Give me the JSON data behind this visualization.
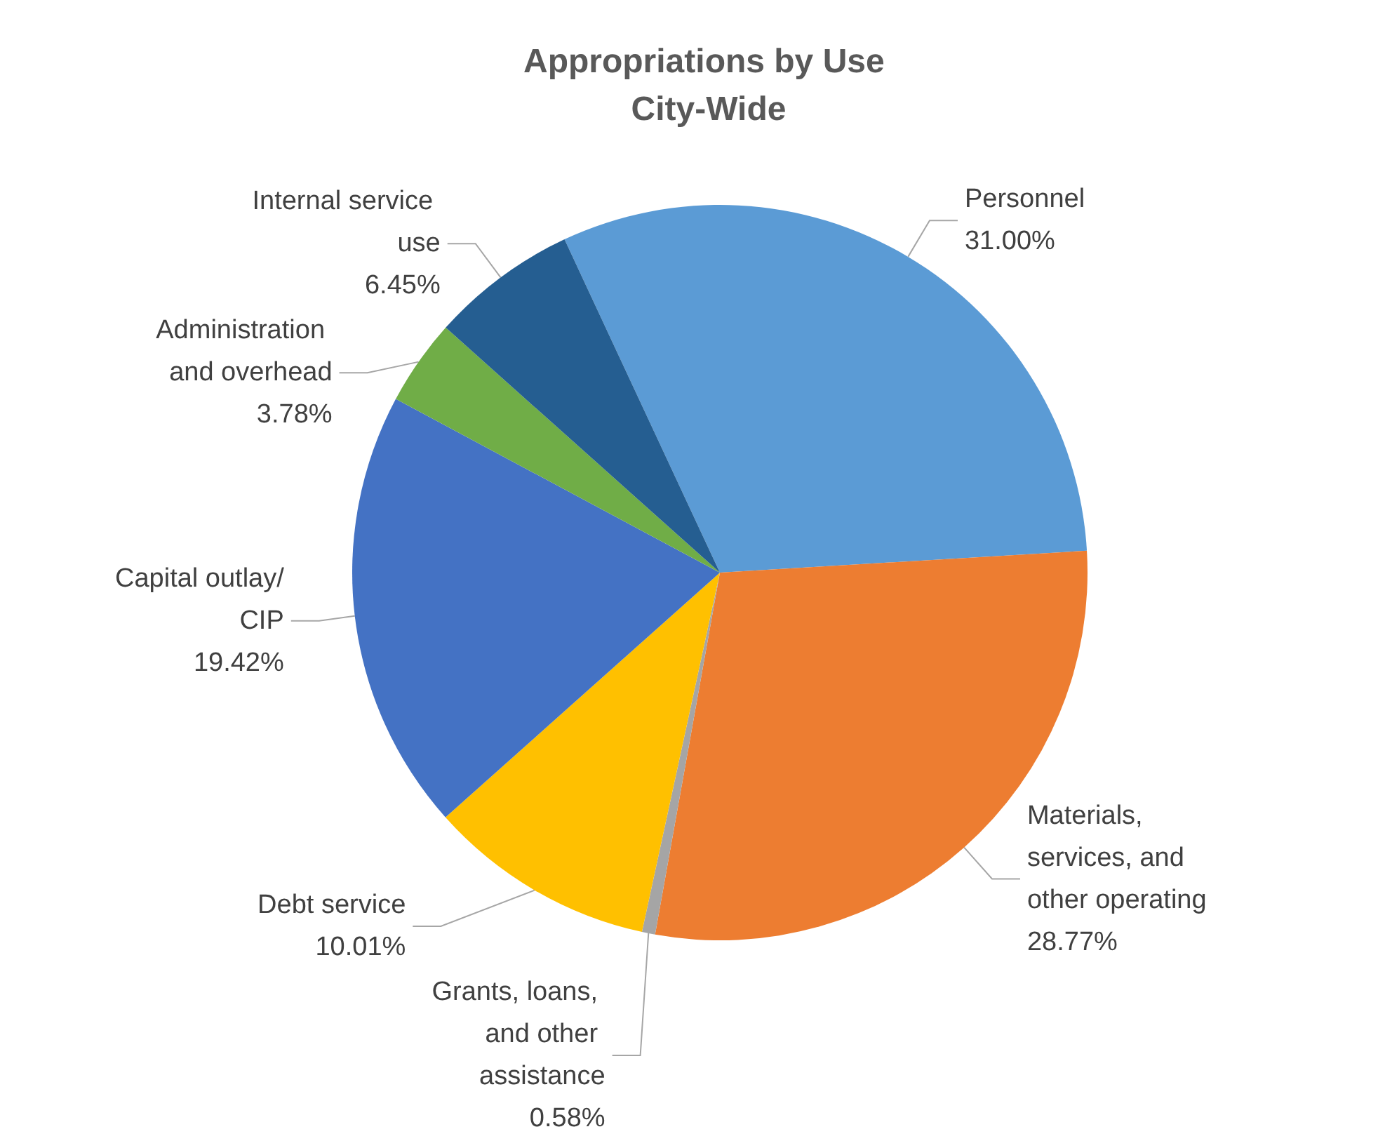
{
  "chart_data": {
    "type": "pie",
    "title": "Appropriations by Use City-Wide",
    "categories": [
      "Personnel",
      "Materials, services, and other operating",
      "Grants, loans, and other assistance",
      "Debt service",
      "Capital outlay/CIP",
      "Administration and overhead",
      "Internal service use"
    ],
    "values": [
      31.0,
      28.77,
      0.58,
      10.01,
      19.42,
      3.78,
      6.45
    ],
    "colors": [
      "#5b9bd5",
      "#ed7d31",
      "#a5a5a5",
      "#ffc000",
      "#4472c4",
      "#70ad47",
      "#255e91"
    ],
    "value_labels": [
      "31.00%",
      "28.77%",
      "0.58%",
      "10.01%",
      "19.42%",
      "3.78%",
      "6.45%"
    ],
    "legend": false
  }
}
